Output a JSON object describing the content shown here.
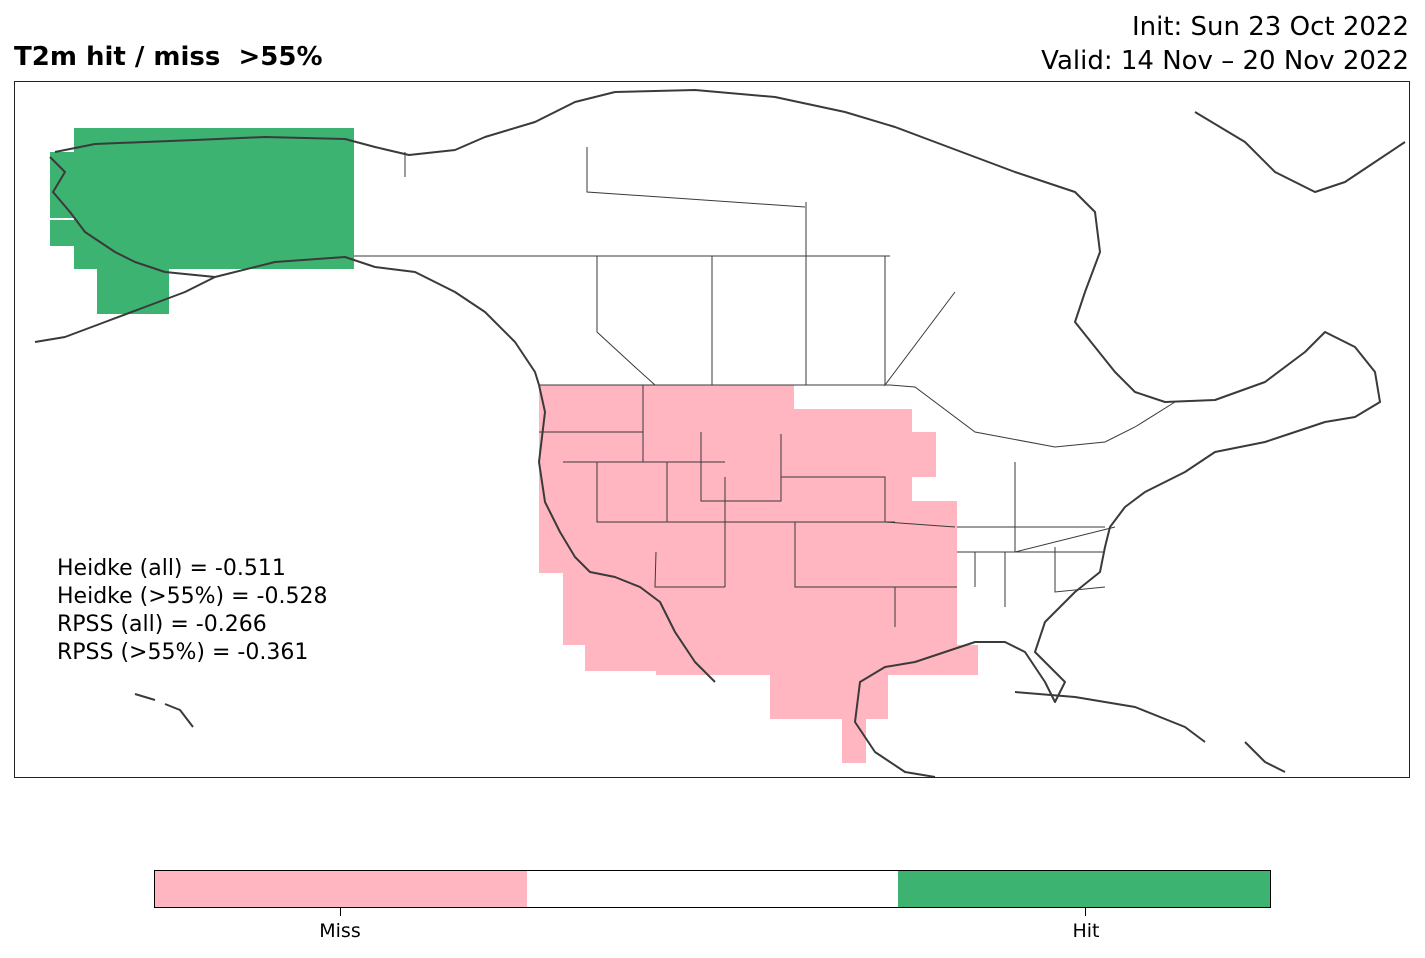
{
  "title": "T2m hit / miss  >55%",
  "init": "Init: Sun 23 Oct 2022",
  "valid": "Valid: 14 Nov – 20 Nov 2022",
  "stats": [
    "Heidke (all) = -0.511",
    "Heidke (>55%) = -0.528",
    "RPSS (all) = -0.266",
    "RPSS (>55%) = -0.361"
  ],
  "colors": {
    "miss": "#ffb6c1",
    "neutral": "#ffffff",
    "hit": "#3cb371",
    "coast": "#3a3a3a"
  },
  "legend": [
    {
      "label": "Miss",
      "color": "#ffb6c1"
    },
    {
      "label": "",
      "color": "#ffffff"
    },
    {
      "label": "Hit",
      "color": "#3cb371"
    }
  ]
}
